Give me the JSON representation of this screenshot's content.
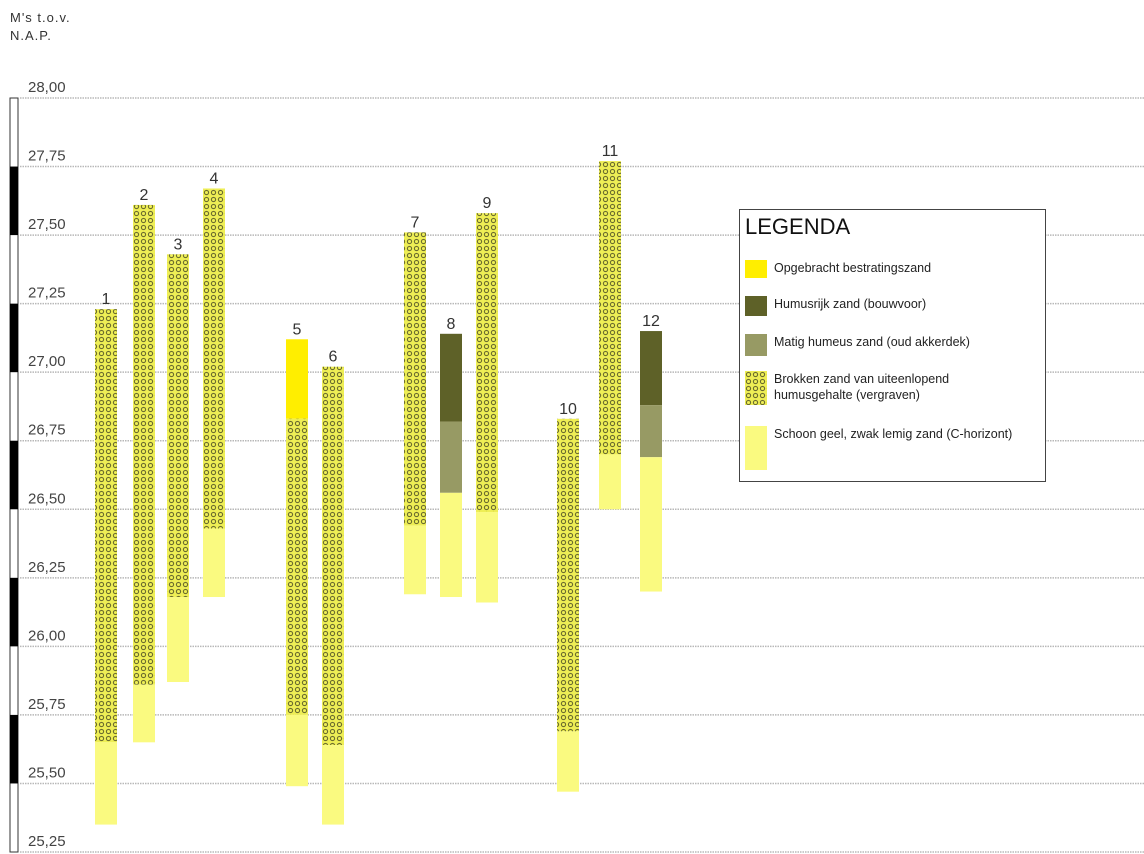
{
  "chart_data": {
    "type": "bar",
    "title": "",
    "ylabel": "M's t.o.v. N.A.P.",
    "ylabel_lines": [
      "M's t.o.v.",
      "N.A.P."
    ],
    "ylim": [
      25.25,
      28.0
    ],
    "yticks": [
      28.0,
      27.75,
      27.5,
      27.25,
      27.0,
      26.75,
      26.5,
      26.25,
      26.0,
      25.75,
      25.5,
      25.25
    ],
    "ytick_labels": [
      "28,00",
      "27,75",
      "27,50",
      "27,25",
      "27,00",
      "26,75",
      "26,50",
      "26,25",
      "26,00",
      "25,75",
      "25,50",
      "25,25"
    ],
    "grid": true,
    "legend_position": "right",
    "legend": {
      "title": "LEGENDA",
      "items": [
        {
          "key": "bestratingszand",
          "label": "Opgebracht bestratingszand",
          "color": "#ffee00"
        },
        {
          "key": "humusrijk",
          "label": "Humusrijk zand (bouwvoor)",
          "color": "#5e6128"
        },
        {
          "key": "matig",
          "label": "Matig humeus zand (oud akkerdek)",
          "color": "#979a64"
        },
        {
          "key": "brokken",
          "label": "Brokken zand van uiteenlopend humusgehalte (vergraven)",
          "color": "#eeee55"
        },
        {
          "key": "schoon",
          "label": "Schoon geel, zwak lemig zand (C-horizont)",
          "color": "#fafa80"
        }
      ]
    },
    "categories": [
      "1",
      "2",
      "3",
      "4",
      "5",
      "6",
      "7",
      "8",
      "9",
      "10",
      "11",
      "12"
    ],
    "borings": [
      {
        "label": "1",
        "segments": [
          {
            "type": "brokken",
            "top": 27.23,
            "bottom": 25.65
          },
          {
            "type": "schoon",
            "top": 25.65,
            "bottom": 25.35
          }
        ]
      },
      {
        "label": "2",
        "segments": [
          {
            "type": "brokken",
            "top": 27.61,
            "bottom": 25.86
          },
          {
            "type": "schoon",
            "top": 25.86,
            "bottom": 25.65
          }
        ]
      },
      {
        "label": "3",
        "segments": [
          {
            "type": "brokken",
            "top": 27.43,
            "bottom": 26.18
          },
          {
            "type": "schoon",
            "top": 26.18,
            "bottom": 25.87
          }
        ]
      },
      {
        "label": "4",
        "segments": [
          {
            "type": "brokken",
            "top": 27.67,
            "bottom": 26.43
          },
          {
            "type": "schoon",
            "top": 26.43,
            "bottom": 26.18
          }
        ]
      },
      {
        "label": "5",
        "segments": [
          {
            "type": "bestratingszand",
            "top": 27.12,
            "bottom": 26.83
          },
          {
            "type": "brokken",
            "top": 26.83,
            "bottom": 25.75
          },
          {
            "type": "schoon",
            "top": 25.75,
            "bottom": 25.49
          }
        ]
      },
      {
        "label": "6",
        "segments": [
          {
            "type": "brokken",
            "top": 27.02,
            "bottom": 25.64
          },
          {
            "type": "schoon",
            "top": 25.64,
            "bottom": 25.35
          }
        ]
      },
      {
        "label": "7",
        "segments": [
          {
            "type": "brokken",
            "top": 27.51,
            "bottom": 26.44
          },
          {
            "type": "schoon",
            "top": 26.44,
            "bottom": 26.19
          }
        ]
      },
      {
        "label": "8",
        "segments": [
          {
            "type": "humusrijk",
            "top": 27.14,
            "bottom": 26.82
          },
          {
            "type": "matig",
            "top": 26.82,
            "bottom": 26.56
          },
          {
            "type": "schoon",
            "top": 26.56,
            "bottom": 26.18
          }
        ]
      },
      {
        "label": "9",
        "segments": [
          {
            "type": "brokken",
            "top": 27.58,
            "bottom": 26.49
          },
          {
            "type": "schoon",
            "top": 26.49,
            "bottom": 26.16
          }
        ]
      },
      {
        "label": "10",
        "segments": [
          {
            "type": "brokken",
            "top": 26.83,
            "bottom": 25.69
          },
          {
            "type": "schoon",
            "top": 25.69,
            "bottom": 25.47
          }
        ]
      },
      {
        "label": "11",
        "segments": [
          {
            "type": "brokken",
            "top": 27.77,
            "bottom": 26.7
          },
          {
            "type": "schoon",
            "top": 26.7,
            "bottom": 26.5
          }
        ]
      },
      {
        "label": "12",
        "segments": [
          {
            "type": "humusrijk",
            "top": 27.15,
            "bottom": 26.88
          },
          {
            "type": "matig",
            "top": 26.88,
            "bottom": 26.69
          },
          {
            "type": "schoon",
            "top": 26.69,
            "bottom": 26.2
          }
        ]
      }
    ]
  }
}
